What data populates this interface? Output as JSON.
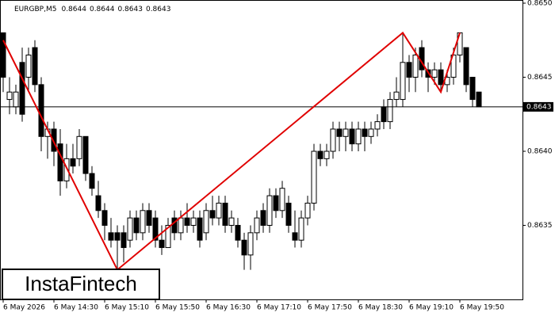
{
  "chart_data": {
    "type": "candlestick",
    "symbol": "EURGBP,M5",
    "quote": [
      0.8644,
      0.8644,
      0.8643,
      0.8643
    ],
    "watermark": "InstaFintech",
    "categories": [
      "6 May 2026",
      null,
      null,
      null,
      null,
      null,
      null,
      null,
      "6 May 14:30",
      null,
      null,
      null,
      null,
      null,
      null,
      null,
      "6 May 15:10",
      null,
      null,
      null,
      null,
      null,
      null,
      null,
      "6 May 15:50",
      null,
      null,
      null,
      null,
      null,
      null,
      null,
      "6 May 16:30",
      null,
      null,
      null,
      null,
      null,
      null,
      null,
      "6 May 17:10",
      null,
      null,
      null,
      null,
      null,
      null,
      null,
      "6 May 17:50",
      null,
      null,
      null,
      null,
      null,
      null,
      null,
      "6 May 18:30",
      null,
      null,
      null,
      null,
      null,
      null,
      null,
      "6 May 19:10",
      null,
      null,
      null,
      null,
      null,
      null,
      null,
      "6 May 19:50",
      null,
      null,
      null
    ],
    "open": [
      0.8648,
      0.86435,
      0.8643,
      0.8646,
      0.8645,
      0.8647,
      0.86445,
      0.8641,
      0.86415,
      0.86405,
      0.8638,
      0.86395,
      0.86395,
      0.8641,
      0.86385,
      0.8637,
      0.8636,
      0.86345,
      0.86345,
      0.86345,
      0.8634,
      0.86355,
      0.86345,
      0.8636,
      0.86355,
      0.8634,
      0.86335,
      0.86355,
      0.86345,
      0.86355,
      0.8635,
      0.86355,
      0.86345,
      0.8636,
      0.86355,
      0.86365,
      0.8635,
      0.8635,
      0.8634,
      0.8633,
      0.86345,
      0.8636,
      0.8635,
      0.8637,
      0.8636,
      0.86365,
      0.86345,
      0.8634,
      0.86355,
      0.86365,
      0.864,
      0.86395,
      0.864,
      0.86415,
      0.8641,
      0.86415,
      0.86405,
      0.86415,
      0.8641,
      0.86415,
      0.8643,
      0.8642,
      0.86435,
      0.86435,
      0.8646,
      0.8645,
      0.8647,
      0.86455,
      0.8645,
      0.86455,
      0.86445,
      0.8645,
      0.86465,
      0.8647,
      0.8645,
      0.8644
    ],
    "high": [
      0.8648,
      0.8645,
      0.86445,
      0.8647,
      0.8647,
      0.86475,
      0.8645,
      0.8642,
      0.8642,
      0.86415,
      0.86405,
      0.86405,
      0.86415,
      0.8641,
      0.8639,
      0.8638,
      0.86365,
      0.86355,
      0.8635,
      0.8635,
      0.8636,
      0.8636,
      0.86365,
      0.86365,
      0.8636,
      0.8635,
      0.86355,
      0.8636,
      0.8636,
      0.86365,
      0.8636,
      0.8636,
      0.86365,
      0.8637,
      0.8637,
      0.8637,
      0.8636,
      0.86355,
      0.86345,
      0.8635,
      0.8636,
      0.86365,
      0.86375,
      0.86375,
      0.8638,
      0.8637,
      0.8636,
      0.8636,
      0.8637,
      0.86405,
      0.86405,
      0.86405,
      0.8642,
      0.8642,
      0.8642,
      0.8642,
      0.8642,
      0.8642,
      0.8642,
      0.86425,
      0.86435,
      0.8644,
      0.8645,
      0.8648,
      0.86465,
      0.8647,
      0.86475,
      0.8646,
      0.8646,
      0.8646,
      0.86455,
      0.8647,
      0.8648,
      0.8647,
      0.8645,
      0.8644
    ],
    "low": [
      0.8644,
      0.86425,
      0.86425,
      0.8642,
      0.8644,
      0.8644,
      0.864,
      0.86395,
      0.8639,
      0.8637,
      0.86375,
      0.86385,
      0.8639,
      0.8638,
      0.8637,
      0.86355,
      0.8634,
      0.86335,
      0.8632,
      0.86325,
      0.86335,
      0.8634,
      0.8634,
      0.86345,
      0.86335,
      0.8633,
      0.86335,
      0.8634,
      0.8634,
      0.86345,
      0.86345,
      0.86335,
      0.8634,
      0.8635,
      0.8635,
      0.86345,
      0.86345,
      0.86335,
      0.8632,
      0.8632,
      0.8634,
      0.86345,
      0.86345,
      0.86355,
      0.86355,
      0.86345,
      0.86335,
      0.86335,
      0.8635,
      0.8636,
      0.8639,
      0.8639,
      0.86395,
      0.864,
      0.864,
      0.864,
      0.864,
      0.864,
      0.86405,
      0.8641,
      0.86415,
      0.86415,
      0.8643,
      0.8643,
      0.8644,
      0.8644,
      0.8645,
      0.8644,
      0.86445,
      0.8644,
      0.8644,
      0.86445,
      0.8646,
      0.8644,
      0.8643,
      0.8643
    ],
    "close": [
      0.8645,
      0.8644,
      0.8644,
      0.86425,
      0.86465,
      0.86445,
      0.8641,
      0.86415,
      0.864,
      0.8638,
      0.86395,
      0.8639,
      0.8641,
      0.86385,
      0.86375,
      0.8636,
      0.8635,
      0.8634,
      0.8634,
      0.86335,
      0.86355,
      0.86345,
      0.8636,
      0.8635,
      0.8634,
      0.86335,
      0.8635,
      0.86345,
      0.86355,
      0.8635,
      0.86355,
      0.8634,
      0.8636,
      0.86355,
      0.86365,
      0.8635,
      0.86355,
      0.8634,
      0.8633,
      0.86345,
      0.86355,
      0.8635,
      0.8637,
      0.8636,
      0.86375,
      0.8635,
      0.8634,
      0.86355,
      0.86365,
      0.864,
      0.86395,
      0.864,
      0.86415,
      0.8641,
      0.86415,
      0.86405,
      0.86415,
      0.8641,
      0.86415,
      0.8642,
      0.8642,
      0.86435,
      0.8644,
      0.8646,
      0.8645,
      0.86465,
      0.86455,
      0.8645,
      0.86455,
      0.86445,
      0.8645,
      0.86465,
      0.8648,
      0.86445,
      0.86435,
      0.8643
    ],
    "up_color": "#ffffff",
    "down_color": "#000000",
    "last_price": 0.8643,
    "pattern_line": {
      "color": "#e00000",
      "x_index": [
        0,
        18,
        63,
        69,
        72
      ],
      "values": [
        0.86475,
        0.8632,
        0.8648,
        0.8644,
        0.8648
      ]
    },
    "ylim": [
      0.863,
      0.865
    ],
    "yticks": [
      {
        "value": 0.865,
        "label": "0.8650"
      },
      0.8645,
      {
        "value": 0.864,
        "label": "0.8640"
      },
      0.8635
    ]
  }
}
